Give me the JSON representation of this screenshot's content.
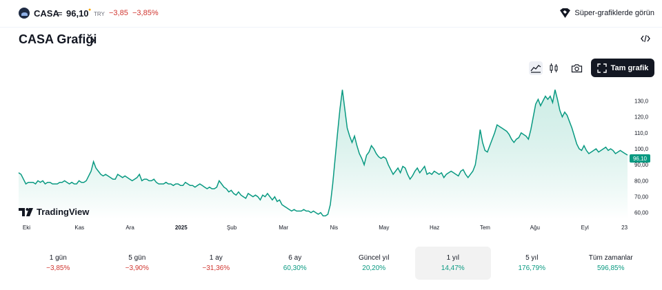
{
  "header": {
    "symbol": "CASA",
    "separator": "=",
    "price": "96,10",
    "price_flag": "●",
    "currency": "TRY",
    "change": "−3,85",
    "change_pct": "−3,85%",
    "super_chart_label": "Süper-grafiklerde görün"
  },
  "title": {
    "text": "CASA Grafiği",
    "chevron": "›"
  },
  "toolbar": {
    "full_chart_label": "Tam grafik",
    "icons": [
      "area-chart-icon",
      "candles-icon",
      "camera-icon",
      "fullscreen-icon",
      "embed-code-icon"
    ]
  },
  "branding": {
    "logo_text": "TradingView"
  },
  "colors": {
    "line": "#089981",
    "fill_top": "#a8dfd3",
    "negative": "#d0352f",
    "positive": "#089981"
  },
  "chart_data": {
    "type": "area",
    "x_ticks": [
      "Eki",
      "Kas",
      "Ara",
      "2025",
      "Şub",
      "Mar",
      "Nis",
      "May",
      "Haz",
      "Tem",
      "Ağu",
      "Eyl",
      "23"
    ],
    "y_ticks": [
      "60,00",
      "70,00",
      "80,00",
      "90,00",
      "100,0",
      "110,0",
      "120,0",
      "130,0"
    ],
    "ylim": [
      56,
      138
    ],
    "last_price_label": "96,10",
    "grid": false,
    "series": [
      {
        "values": [
          85,
          84,
          81,
          78,
          79,
          79,
          79,
          78,
          80,
          79,
          80,
          78,
          79,
          79,
          78,
          78,
          78,
          79,
          79,
          80,
          79,
          78,
          79,
          78,
          78,
          80,
          79,
          79,
          80,
          83,
          86,
          92,
          88,
          86,
          84,
          83,
          84,
          83,
          82,
          81,
          81,
          84,
          83,
          82,
          83,
          82,
          81,
          80,
          81,
          82,
          84,
          80,
          81,
          81,
          80,
          80,
          81,
          79,
          78,
          78,
          78,
          79,
          78,
          78,
          77,
          78,
          78,
          77,
          77,
          79,
          78,
          77,
          77,
          76,
          77,
          78,
          77,
          76,
          75,
          76,
          75,
          75,
          76,
          80,
          78,
          76,
          75,
          73,
          74,
          72,
          71,
          73,
          71,
          70,
          69,
          72,
          71,
          70,
          71,
          70,
          68,
          71,
          70,
          72,
          70,
          68,
          70,
          67,
          68,
          65,
          64,
          63,
          62,
          61,
          62,
          61,
          61,
          61,
          62,
          61,
          61,
          60,
          61,
          60,
          59,
          60,
          58,
          58,
          59,
          65,
          78,
          94,
          110,
          125,
          137,
          125,
          113,
          108,
          104,
          108,
          102,
          97,
          94,
          90,
          96,
          98,
          102,
          100,
          97,
          95,
          94,
          95,
          94,
          90,
          87,
          84,
          86,
          88,
          85,
          89,
          88,
          84,
          81,
          83,
          86,
          88,
          85,
          87,
          89,
          84,
          85,
          84,
          86,
          85,
          84,
          85,
          82,
          84,
          85,
          86,
          85,
          84,
          83,
          86,
          87,
          84,
          82,
          84,
          86,
          90,
          100,
          112,
          104,
          99,
          98,
          102,
          106,
          110,
          115,
          114,
          113,
          112,
          111,
          109,
          106,
          104,
          106,
          107,
          110,
          109,
          108,
          106,
          112,
          120,
          128,
          131,
          127,
          130,
          133,
          131,
          133,
          129,
          137,
          131,
          124,
          120,
          123,
          121,
          117,
          113,
          108,
          103,
          100,
          99,
          102,
          99,
          97,
          98,
          99,
          100,
          98,
          99,
          100,
          101,
          99,
          100,
          99,
          97,
          98,
          99,
          98,
          97,
          96.1
        ]
      }
    ]
  },
  "periods": [
    {
      "label": "1 gün",
      "value": "−3,85%",
      "sign": "neg"
    },
    {
      "label": "5 gün",
      "value": "−3,90%",
      "sign": "neg"
    },
    {
      "label": "1 ay",
      "value": "−31,36%",
      "sign": "neg"
    },
    {
      "label": "6 ay",
      "value": "60,30%",
      "sign": "pos"
    },
    {
      "label": "Güncel yıl",
      "value": "20,20%",
      "sign": "pos"
    },
    {
      "label": "1 yıl",
      "value": "14,47%",
      "sign": "pos",
      "selected": true
    },
    {
      "label": "5 yıl",
      "value": "176,79%",
      "sign": "pos"
    },
    {
      "label": "Tüm zamanlar",
      "value": "596,85%",
      "sign": "pos"
    }
  ]
}
